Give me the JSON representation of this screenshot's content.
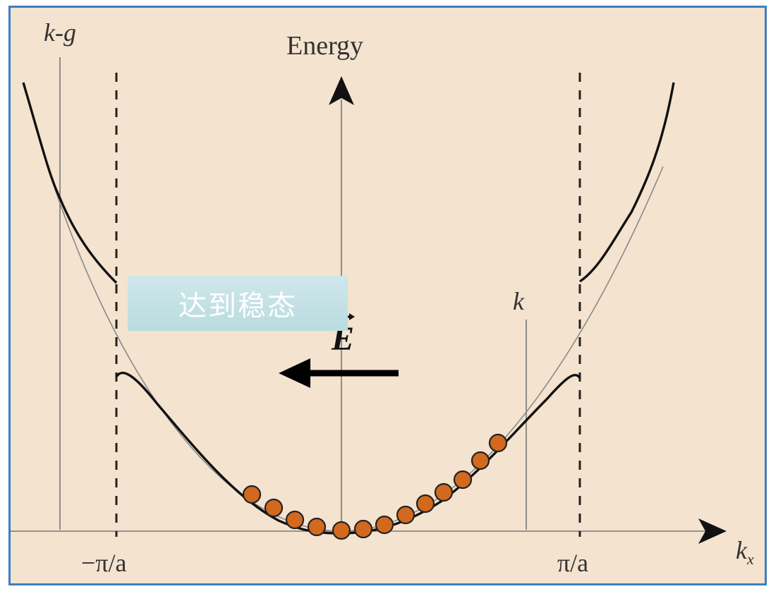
{
  "axes": {
    "energy_label": "Energy",
    "kx_label_base": "k",
    "kx_label_sub": "x"
  },
  "markers": {
    "kg_label": "k-g",
    "k_label": "k",
    "neg_pi_a": "−π/a",
    "pos_pi_a": "π/a"
  },
  "overlay": {
    "text": "达到稳态"
  },
  "field": {
    "symbol": "E",
    "direction": "left"
  },
  "electrons": {
    "count": 13,
    "color": "#d2691e"
  },
  "colors": {
    "background": "#f4e3cf",
    "border": "#3a7fc4",
    "curve": "#1a1a1a",
    "electron_fill": "#d2691e",
    "overlay": "#c5e3e6"
  }
}
